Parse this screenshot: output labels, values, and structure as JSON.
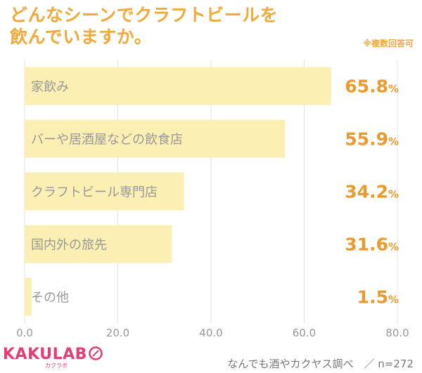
{
  "header": {
    "title": "どんなシーンでクラフトビールを\n飲んでいますか。",
    "note": "※複数回答可"
  },
  "footer": {
    "logo_text": "KAKULAB",
    "logo_sub": "カクラボ",
    "source": "なんでも酒やカクヤス調べ　／ n=272"
  },
  "colors": {
    "bar": "#fbefb4",
    "value": "#eb9a2e",
    "label": "#999999",
    "grid": "#e3e3e3",
    "title": "#f3a93a",
    "logo": "#e23d77"
  },
  "chart_data": {
    "type": "bar",
    "orientation": "horizontal",
    "categories": [
      "家飲み",
      "バーや居酒屋などの飲食店",
      "クラフトビール専門店",
      "国内外の旅先",
      "その他"
    ],
    "values": [
      65.8,
      55.9,
      34.2,
      31.6,
      1.5
    ],
    "value_suffix": "%",
    "xlim": [
      0,
      80
    ],
    "xticks": [
      "0.0",
      "20.0",
      "40.0",
      "60.0",
      "80.0"
    ],
    "grid": true
  }
}
